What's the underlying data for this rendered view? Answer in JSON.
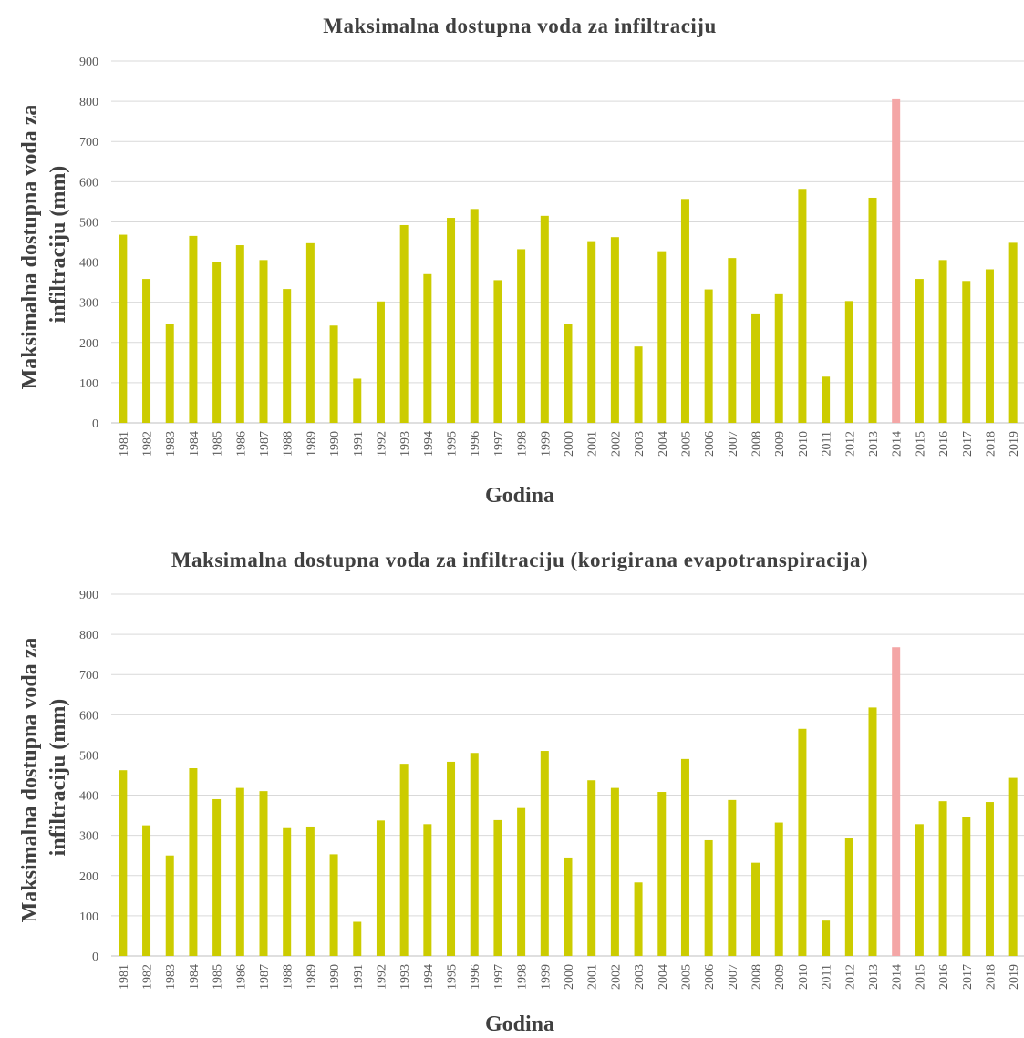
{
  "colors": {
    "bar": "#cccc00",
    "highlight": "#f4a6a6"
  },
  "chart_data": [
    {
      "type": "bar",
      "title": "Maksimalna dostupna voda za infiltraciju",
      "xlabel": "Godina",
      "ylabel_lines": [
        "Maksimalna dostupna voda za",
        "infiltraciju (mm)"
      ],
      "ylim": [
        0,
        900
      ],
      "yticks": [
        0,
        100,
        200,
        300,
        400,
        500,
        600,
        700,
        800,
        900
      ],
      "grid": true,
      "highlight_category": "2014",
      "categories": [
        "1981",
        "1982",
        "1983",
        "1984",
        "1985",
        "1986",
        "1987",
        "1988",
        "1989",
        "1990",
        "1991",
        "1992",
        "1993",
        "1994",
        "1995",
        "1996",
        "1997",
        "1998",
        "1999",
        "2000",
        "2001",
        "2002",
        "2003",
        "2004",
        "2005",
        "2006",
        "2007",
        "2008",
        "2009",
        "2010",
        "2011",
        "2012",
        "2013",
        "2014",
        "2015",
        "2016",
        "2017",
        "2018",
        "2019"
      ],
      "values": [
        468,
        358,
        245,
        465,
        400,
        442,
        405,
        333,
        447,
        242,
        110,
        302,
        492,
        370,
        510,
        532,
        355,
        432,
        515,
        247,
        452,
        462,
        190,
        427,
        557,
        332,
        410,
        270,
        320,
        582,
        115,
        303,
        560,
        805,
        358,
        405,
        353,
        382,
        448
      ]
    },
    {
      "type": "bar",
      "title": "Maksimalna dostupna voda za infiltraciju (korigirana evapotranspiracija)",
      "xlabel": "Godina",
      "ylabel_lines": [
        "Maksimalna dostupna voda za",
        "infiltraciju (mm)"
      ],
      "ylim": [
        0,
        900
      ],
      "yticks": [
        0,
        100,
        200,
        300,
        400,
        500,
        600,
        700,
        800,
        900
      ],
      "grid": true,
      "highlight_category": "2014",
      "categories": [
        "1981",
        "1982",
        "1983",
        "1984",
        "1985",
        "1986",
        "1987",
        "1988",
        "1989",
        "1990",
        "1991",
        "1992",
        "1993",
        "1994",
        "1995",
        "1996",
        "1997",
        "1998",
        "1999",
        "2000",
        "2001",
        "2002",
        "2003",
        "2004",
        "2005",
        "2006",
        "2007",
        "2008",
        "2009",
        "2010",
        "2011",
        "2012",
        "2013",
        "2014",
        "2015",
        "2016",
        "2017",
        "2018",
        "2019"
      ],
      "values": [
        462,
        325,
        250,
        467,
        390,
        418,
        410,
        318,
        322,
        253,
        85,
        337,
        478,
        328,
        483,
        505,
        338,
        368,
        510,
        245,
        437,
        418,
        183,
        408,
        490,
        288,
        388,
        232,
        332,
        565,
        88,
        293,
        618,
        768,
        328,
        385,
        345,
        383,
        443
      ]
    }
  ]
}
